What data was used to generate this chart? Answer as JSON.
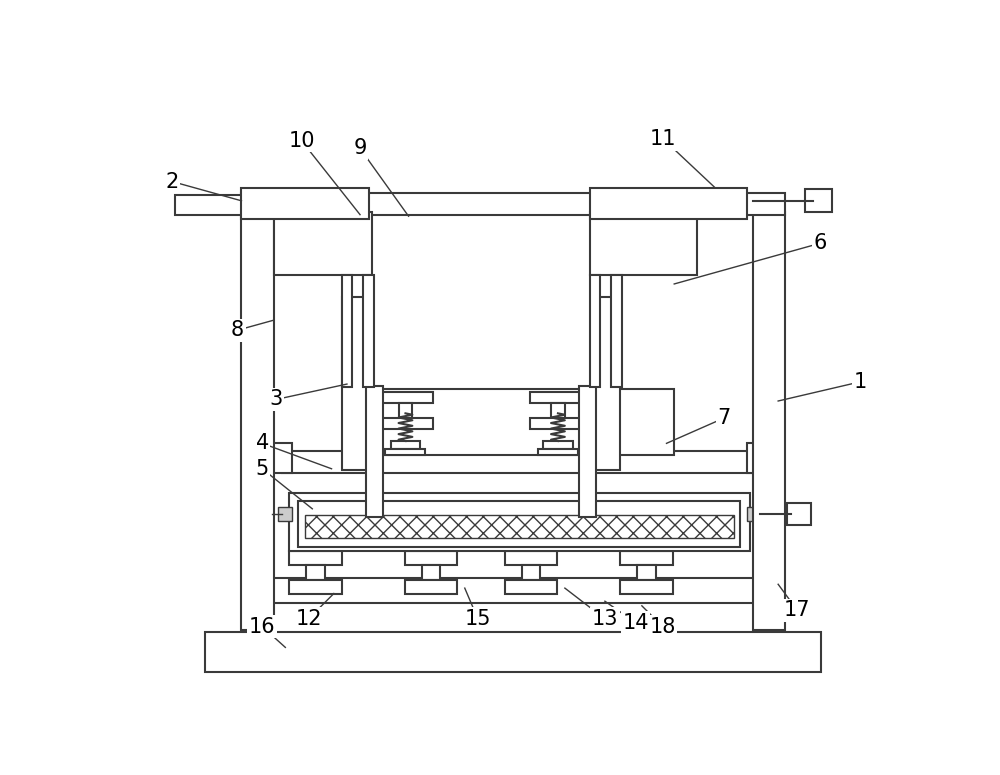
{
  "line_color": "#3a3a3a",
  "lw": 1.5,
  "lw_thin": 1.0,
  "label_fontsize": 15,
  "annotations": {
    "1": {
      "lpos": [
        952,
        375
      ],
      "tpos": [
        845,
        400
      ]
    },
    "2": {
      "lpos": [
        58,
        115
      ],
      "tpos": [
        148,
        140
      ]
    },
    "3": {
      "lpos": [
        193,
        398
      ],
      "tpos": [
        285,
        378
      ]
    },
    "4": {
      "lpos": [
        175,
        455
      ],
      "tpos": [
        265,
        488
      ]
    },
    "5": {
      "lpos": [
        175,
        488
      ],
      "tpos": [
        240,
        540
      ]
    },
    "6": {
      "lpos": [
        900,
        195
      ],
      "tpos": [
        710,
        248
      ]
    },
    "7": {
      "lpos": [
        775,
        422
      ],
      "tpos": [
        700,
        455
      ]
    },
    "8": {
      "lpos": [
        143,
        308
      ],
      "tpos": [
        190,
        295
      ]
    },
    "9": {
      "lpos": [
        302,
        72
      ],
      "tpos": [
        365,
        160
      ]
    },
    "10": {
      "lpos": [
        226,
        62
      ],
      "tpos": [
        302,
        158
      ]
    },
    "11": {
      "lpos": [
        696,
        60
      ],
      "tpos": [
        762,
        122
      ]
    },
    "12": {
      "lpos": [
        235,
        683
      ],
      "tpos": [
        268,
        650
      ]
    },
    "13": {
      "lpos": [
        620,
        683
      ],
      "tpos": [
        568,
        643
      ]
    },
    "14": {
      "lpos": [
        660,
        688
      ],
      "tpos": [
        620,
        660
      ]
    },
    "15": {
      "lpos": [
        455,
        683
      ],
      "tpos": [
        438,
        643
      ]
    },
    "16": {
      "lpos": [
        175,
        693
      ],
      "tpos": [
        205,
        720
      ]
    },
    "17": {
      "lpos": [
        870,
        672
      ],
      "tpos": [
        845,
        638
      ]
    },
    "18": {
      "lpos": [
        695,
        693
      ],
      "tpos": [
        668,
        666
      ]
    }
  }
}
